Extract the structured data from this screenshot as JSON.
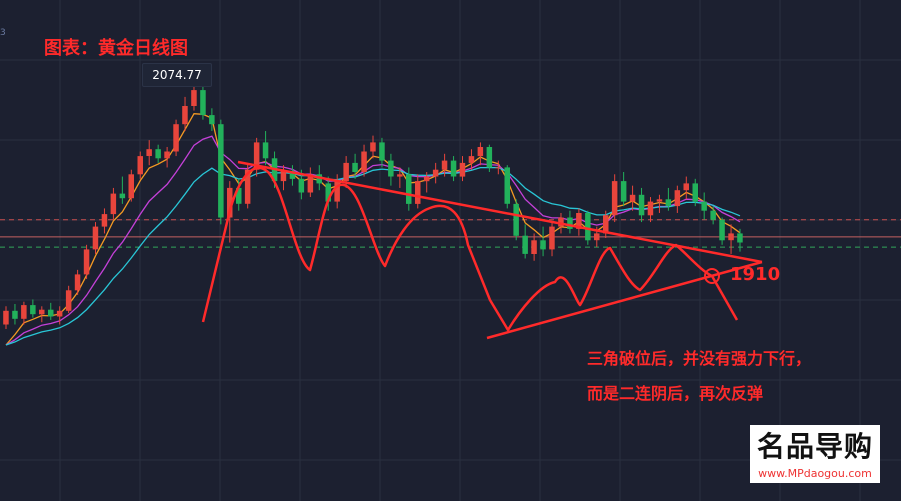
{
  "title": "图表：黄金日线图",
  "edge_label": "3",
  "annotations": {
    "peak_label": "2074.77",
    "level_label": "1910",
    "note_line1": "三角破位后，并没有强力下行，",
    "note_line2": "而是二连阴后，再次反弹"
  },
  "watermark": {
    "brand": "名品导购",
    "url": "www.MPdaogou.com"
  },
  "colors": {
    "background": "#1c2030",
    "grid": "#2a3040",
    "up": "#e8453c",
    "down": "#22b15b",
    "ma_fast": "#f59a23",
    "ma_mid": "#c440d8",
    "ma_slow": "#29c6d6",
    "annotation": "#ff2a2a",
    "level_red": "#c95050",
    "level_green": "#31a65a"
  },
  "chart_data": {
    "type": "candlestick",
    "instrument": "黄金",
    "timeframe": "日线",
    "ylim": [
      1820,
      2110
    ],
    "peak": 2074.77,
    "horizontal_levels": [
      {
        "price": 1952,
        "color": "#c95050",
        "style": "dashed"
      },
      {
        "price": 1937,
        "color": "#c46060",
        "style": "solid"
      },
      {
        "price": 1928,
        "color": "#31a65a",
        "style": "dashed"
      }
    ],
    "candles": [
      [
        1860,
        1876,
        1856,
        1872
      ],
      [
        1872,
        1878,
        1860,
        1865
      ],
      [
        1865,
        1880,
        1860,
        1877
      ],
      [
        1877,
        1882,
        1866,
        1869
      ],
      [
        1869,
        1876,
        1862,
        1873
      ],
      [
        1873,
        1879,
        1864,
        1867
      ],
      [
        1867,
        1876,
        1860,
        1872
      ],
      [
        1872,
        1894,
        1870,
        1890
      ],
      [
        1890,
        1908,
        1886,
        1904
      ],
      [
        1904,
        1930,
        1900,
        1926
      ],
      [
        1926,
        1950,
        1922,
        1946
      ],
      [
        1946,
        1962,
        1940,
        1957
      ],
      [
        1957,
        1980,
        1952,
        1975
      ],
      [
        1975,
        1990,
        1966,
        1971
      ],
      [
        1971,
        1996,
        1968,
        1992
      ],
      [
        1992,
        2012,
        1988,
        2008
      ],
      [
        2008,
        2022,
        2000,
        2014
      ],
      [
        2014,
        2018,
        2002,
        2006
      ],
      [
        2006,
        2016,
        1998,
        2012
      ],
      [
        2012,
        2040,
        2008,
        2036
      ],
      [
        2036,
        2060,
        2030,
        2052
      ],
      [
        2052,
        2074.77,
        2048,
        2066
      ],
      [
        2066,
        2070,
        2040,
        2044
      ],
      [
        2044,
        2050,
        2030,
        2036
      ],
      [
        2036,
        2040,
        1948,
        1954
      ],
      [
        1954,
        1986,
        1932,
        1980
      ],
      [
        1980,
        1988,
        1960,
        1966
      ],
      [
        1966,
        2002,
        1962,
        1996
      ],
      [
        1996,
        2024,
        1990,
        2020
      ],
      [
        2020,
        2030,
        2000,
        2006
      ],
      [
        2006,
        2012,
        1980,
        1986
      ],
      [
        1986,
        2000,
        1978,
        1995
      ],
      [
        1995,
        2000,
        1982,
        1988
      ],
      [
        1988,
        1996,
        1970,
        1976
      ],
      [
        1976,
        1998,
        1972,
        1992
      ],
      [
        1992,
        2000,
        1978,
        1984
      ],
      [
        1984,
        1990,
        1960,
        1968
      ],
      [
        1968,
        1992,
        1962,
        1986
      ],
      [
        1986,
        2008,
        1980,
        2002
      ],
      [
        2002,
        2010,
        1988,
        1994
      ],
      [
        1994,
        2018,
        1990,
        2012
      ],
      [
        2012,
        2026,
        2006,
        2020
      ],
      [
        2020,
        2024,
        1998,
        2004
      ],
      [
        2004,
        2010,
        1982,
        1990
      ],
      [
        1990,
        1998,
        1980,
        1992
      ],
      [
        1992,
        1998,
        1960,
        1966
      ],
      [
        1966,
        1992,
        1962,
        1986
      ],
      [
        1986,
        1994,
        1976,
        1990
      ],
      [
        1990,
        2002,
        1984,
        1996
      ],
      [
        1996,
        2010,
        1990,
        2004
      ],
      [
        2004,
        2008,
        1986,
        1990
      ],
      [
        1990,
        2008,
        1986,
        2002
      ],
      [
        2002,
        2014,
        1996,
        2008
      ],
      [
        2008,
        2020,
        2000,
        2016
      ],
      [
        2016,
        2018,
        1994,
        1998
      ],
      [
        1998,
        2004,
        1992,
        1998
      ],
      [
        1998,
        2000,
        1962,
        1966
      ],
      [
        1966,
        1970,
        1934,
        1938
      ],
      [
        1938,
        1948,
        1918,
        1922
      ],
      [
        1922,
        1940,
        1916,
        1934
      ],
      [
        1934,
        1946,
        1920,
        1926
      ],
      [
        1926,
        1950,
        1920,
        1946
      ],
      [
        1946,
        1958,
        1940,
        1954
      ],
      [
        1954,
        1960,
        1940,
        1944
      ],
      [
        1944,
        1962,
        1938,
        1958
      ],
      [
        1958,
        1960,
        1930,
        1934
      ],
      [
        1934,
        1946,
        1928,
        1940
      ],
      [
        1940,
        1960,
        1936,
        1956
      ],
      [
        1956,
        1992,
        1950,
        1986
      ],
      [
        1986,
        1994,
        1964,
        1968
      ],
      [
        1968,
        1982,
        1960,
        1974
      ],
      [
        1974,
        1980,
        1950,
        1956
      ],
      [
        1956,
        1972,
        1950,
        1968
      ],
      [
        1968,
        1974,
        1958,
        1970
      ],
      [
        1970,
        1980,
        1960,
        1964
      ],
      [
        1964,
        1982,
        1958,
        1978
      ],
      [
        1978,
        1990,
        1970,
        1984
      ],
      [
        1984,
        1988,
        1964,
        1968
      ],
      [
        1968,
        1976,
        1952,
        1960
      ],
      [
        1960,
        1964,
        1948,
        1952
      ],
      [
        1952,
        1954,
        1930,
        1934
      ],
      [
        1934,
        1948,
        1922,
        1940
      ],
      [
        1940,
        1944,
        1924,
        1932
      ]
    ],
    "moving_averages": [
      {
        "name": "MA fast",
        "color": "#f59a23"
      },
      {
        "name": "MA mid",
        "color": "#c440d8"
      },
      {
        "name": "MA slow",
        "color": "#29c6d6"
      }
    ]
  }
}
